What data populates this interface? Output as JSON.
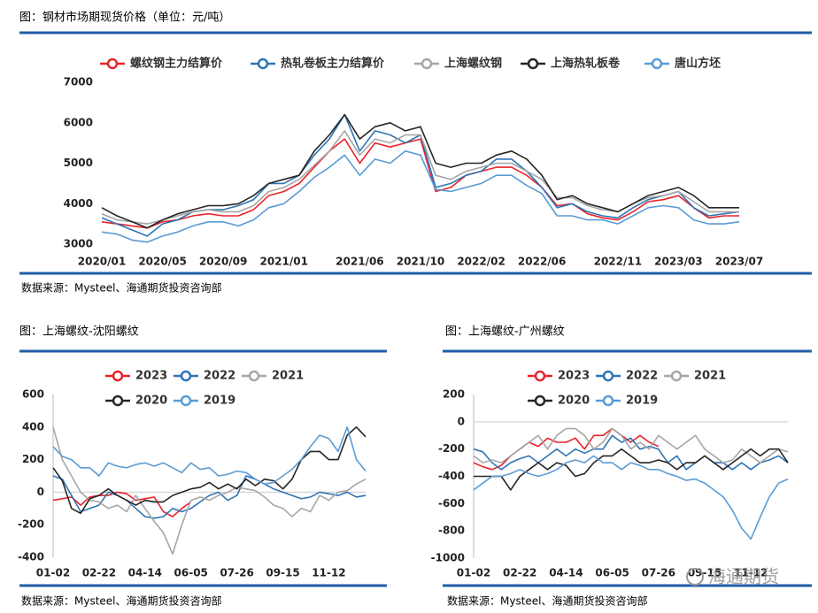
{
  "chart_data": [
    {
      "type": "line",
      "title": "图：钢材市场期现货价格（单位：元/吨）",
      "source": "数据来源：Mysteel、海通期货投资咨询部",
      "legend": "top",
      "categories": [
        "2020/01",
        null,
        null,
        null,
        "2020/05",
        null,
        null,
        null,
        "2020/09",
        null,
        null,
        null,
        "2021/01",
        null,
        null,
        null,
        null,
        "2021/06",
        null,
        null,
        null,
        "2021/10",
        null,
        null,
        null,
        "2022/02",
        null,
        null,
        null,
        "2022/06",
        null,
        null,
        null,
        null,
        "2022/11",
        null,
        null,
        null,
        "2023/03",
        null,
        null,
        null,
        "2023/07"
      ],
      "ylim": [
        3000,
        7000
      ],
      "yticks": [
        3000,
        4000,
        5000,
        6000,
        7000
      ],
      "grid": false,
      "series": [
        {
          "name": "螺纹钢主力结算价",
          "color": "#e8242b",
          "values": [
            3550,
            3500,
            3450,
            3400,
            3550,
            3600,
            3700,
            3750,
            3700,
            3700,
            3850,
            4200,
            4300,
            4500,
            4900,
            5300,
            5600,
            5000,
            5500,
            5400,
            5500,
            5600,
            4300,
            4400,
            4700,
            4800,
            4900,
            4900,
            4700,
            4400,
            3950,
            4000,
            3750,
            3650,
            3600,
            3800,
            4050,
            4100,
            4200,
            3900,
            3650,
            3700,
            3700
          ]
        },
        {
          "name": "热轧卷板主力结算价",
          "color": "#2e75b6",
          "values": [
            3650,
            3500,
            3350,
            3200,
            3500,
            3600,
            3800,
            3850,
            3850,
            3950,
            4100,
            4500,
            4500,
            4700,
            5200,
            5600,
            6200,
            5300,
            5800,
            5700,
            5500,
            5700,
            4400,
            4500,
            4700,
            4800,
            5100,
            5100,
            4800,
            4400,
            3900,
            4000,
            3800,
            3700,
            3650,
            3900,
            4100,
            4200,
            4300,
            3900,
            3700,
            3750,
            3800
          ]
        },
        {
          "name": "上海螺纹钢",
          "color": "#a6a6a6",
          "values": [
            3750,
            3600,
            3550,
            3500,
            3600,
            3700,
            3800,
            3850,
            3800,
            3800,
            3950,
            4300,
            4400,
            4600,
            4950,
            5300,
            5800,
            5200,
            5600,
            5500,
            5700,
            5700,
            4700,
            4600,
            4800,
            4900,
            5000,
            5000,
            4800,
            4600,
            4150,
            4150,
            3950,
            3850,
            3800,
            4000,
            4150,
            4200,
            4300,
            4050,
            3800,
            3800,
            3800
          ]
        },
        {
          "name": "上海热轧板卷",
          "color": "#262626",
          "values": [
            3900,
            3700,
            3550,
            3400,
            3600,
            3750,
            3850,
            3950,
            3950,
            4000,
            4200,
            4500,
            4600,
            4700,
            5300,
            5700,
            6200,
            5600,
            5900,
            6000,
            5800,
            5900,
            5000,
            4900,
            5000,
            5000,
            5200,
            5300,
            5100,
            4700,
            4100,
            4200,
            4000,
            3900,
            3800,
            4000,
            4200,
            4300,
            4400,
            4200,
            3900,
            3900,
            3900
          ]
        },
        {
          "name": "唐山方坯",
          "color": "#5b9bd5",
          "values": [
            3300,
            3250,
            3100,
            3050,
            3200,
            3300,
            3450,
            3550,
            3550,
            3450,
            3600,
            3900,
            4000,
            4300,
            4650,
            4900,
            5200,
            4700,
            5100,
            5000,
            5300,
            5200,
            4350,
            4300,
            4400,
            4500,
            4700,
            4700,
            4450,
            4250,
            3700,
            3700,
            3600,
            3600,
            3500,
            3700,
            3900,
            3950,
            3900,
            3600,
            3500,
            3500,
            3550
          ]
        }
      ]
    },
    {
      "type": "line",
      "title": "图：上海螺纹-沈阳螺纹",
      "source": "数据来源：Mysteel、海通期货投资咨询部",
      "legend": "top",
      "categories": [
        "01-02",
        null,
        null,
        null,
        null,
        "02-22",
        null,
        null,
        null,
        null,
        "04-14",
        null,
        null,
        null,
        null,
        "06-05",
        null,
        null,
        null,
        null,
        "07-26",
        null,
        null,
        null,
        null,
        "09-15",
        null,
        null,
        null,
        null,
        "11-12",
        null,
        null,
        null,
        null
      ],
      "ylim": [
        -400,
        600
      ],
      "yticks": [
        -400,
        -200,
        0,
        200,
        400,
        600
      ],
      "grid": false,
      "series": [
        {
          "name": "2023",
          "color": "#e8242b",
          "values": [
            -50,
            -40,
            -30,
            -80,
            -30,
            -20,
            -20,
            0,
            -10,
            -50,
            -40,
            -30,
            -120,
            -150,
            -100,
            -60,
            null,
            null,
            null,
            null,
            null,
            null,
            null,
            null,
            null,
            null,
            null,
            null,
            null,
            null,
            null,
            null,
            null,
            null,
            null
          ]
        },
        {
          "name": "2022",
          "color": "#2e75b6",
          "values": [
            100,
            80,
            -20,
            -120,
            -100,
            -80,
            0,
            -20,
            -50,
            -100,
            -150,
            -160,
            -150,
            -100,
            -120,
            -100,
            -60,
            -20,
            0,
            -50,
            -20,
            100,
            80,
            50,
            20,
            0,
            -20,
            -40,
            -30,
            0,
            -10,
            -20,
            0,
            -30,
            -20
          ]
        },
        {
          "name": "2021",
          "color": "#a6a6a6",
          "values": [
            400,
            200,
            100,
            0,
            -50,
            -60,
            -100,
            -80,
            -120,
            -20,
            -100,
            -180,
            -250,
            -380,
            -200,
            -50,
            -30,
            -50,
            -20,
            0,
            30,
            20,
            10,
            -30,
            -80,
            -100,
            -150,
            -100,
            -120,
            -20,
            -50,
            0,
            10,
            50,
            80
          ]
        },
        {
          "name": "2020",
          "color": "#262626",
          "values": [
            150,
            70,
            -100,
            -130,
            -40,
            -20,
            20,
            -20,
            -50,
            -80,
            -50,
            -60,
            -60,
            -20,
            0,
            20,
            30,
            60,
            20,
            50,
            20,
            80,
            40,
            80,
            70,
            20,
            80,
            200,
            250,
            250,
            200,
            200,
            350,
            400,
            340
          ]
        },
        {
          "name": "2019",
          "color": "#5b9bd5",
          "values": [
            280,
            220,
            200,
            150,
            150,
            100,
            180,
            160,
            150,
            170,
            180,
            160,
            180,
            150,
            120,
            180,
            140,
            150,
            100,
            110,
            130,
            120,
            80,
            50,
            60,
            100,
            140,
            200,
            280,
            350,
            330,
            250,
            400,
            200,
            130
          ]
        }
      ]
    },
    {
      "type": "line",
      "title": "图：上海螺纹-广州螺纹",
      "source": "数据来源：Mysteel、海通期货投资咨询部",
      "legend": "top",
      "categories": [
        "01-02",
        null,
        null,
        null,
        null,
        "02-22",
        null,
        null,
        null,
        null,
        "04-14",
        null,
        null,
        null,
        null,
        "06-05",
        null,
        null,
        null,
        null,
        "07-26",
        null,
        null,
        null,
        null,
        "09-15",
        null,
        null,
        null,
        null,
        "11-12",
        null,
        null,
        null,
        null
      ],
      "ylim": [
        -1000,
        200
      ],
      "yticks": [
        -1000,
        -800,
        -600,
        -400,
        -200,
        0,
        200
      ],
      "grid": false,
      "series": [
        {
          "name": "2023",
          "color": "#e8242b",
          "values": [
            -300,
            -330,
            -350,
            -320,
            -250,
            -200,
            -150,
            -180,
            -120,
            -150,
            -150,
            -120,
            -200,
            -100,
            -100,
            -50,
            -100,
            -150,
            -100,
            -150,
            -180,
            null,
            null,
            null,
            null,
            null,
            null,
            null,
            null,
            null,
            null,
            null,
            null,
            null,
            null
          ]
        },
        {
          "name": "2022",
          "color": "#2e75b6",
          "values": [
            -200,
            -220,
            -300,
            -350,
            -300,
            -270,
            -250,
            -300,
            -250,
            -200,
            -250,
            -200,
            -230,
            -200,
            -200,
            -100,
            -150,
            -120,
            -200,
            -180,
            -200,
            -300,
            -250,
            -350,
            -300,
            -250,
            -300,
            -300,
            -350,
            -300,
            -350,
            -300,
            -280,
            -250,
            -300
          ]
        },
        {
          "name": "2021",
          "color": "#a6a6a6",
          "values": [
            -250,
            -300,
            -280,
            -300,
            -250,
            -200,
            -150,
            -100,
            -200,
            -100,
            -50,
            -50,
            -100,
            -200,
            -150,
            -50,
            -100,
            -200,
            -150,
            -200,
            -100,
            -150,
            -200,
            -150,
            -100,
            -200,
            -250,
            -300,
            -280,
            -200,
            -250,
            -300,
            -250,
            -200,
            -220
          ]
        },
        {
          "name": "2020",
          "color": "#262626",
          "values": [
            -400,
            -400,
            -400,
            -400,
            -500,
            -400,
            -350,
            -300,
            -350,
            -300,
            -320,
            -400,
            -380,
            -300,
            -250,
            -250,
            -200,
            -250,
            -300,
            -300,
            -280,
            -300,
            -350,
            -300,
            -300,
            -250,
            -300,
            -350,
            -300,
            -250,
            -200,
            -250,
            -200,
            -200,
            -300
          ]
        },
        {
          "name": "2019",
          "color": "#5b9bd5",
          "values": [
            -500,
            -450,
            -400,
            -400,
            -380,
            -350,
            -380,
            -400,
            -380,
            -350,
            -300,
            -280,
            -300,
            -250,
            -300,
            -300,
            -350,
            -300,
            -320,
            -350,
            -350,
            -380,
            -400,
            -430,
            -420,
            -450,
            -500,
            -550,
            -650,
            -780,
            -860,
            -700,
            -550,
            -450,
            -420
          ]
        }
      ]
    }
  ],
  "watermark": "海通期货"
}
